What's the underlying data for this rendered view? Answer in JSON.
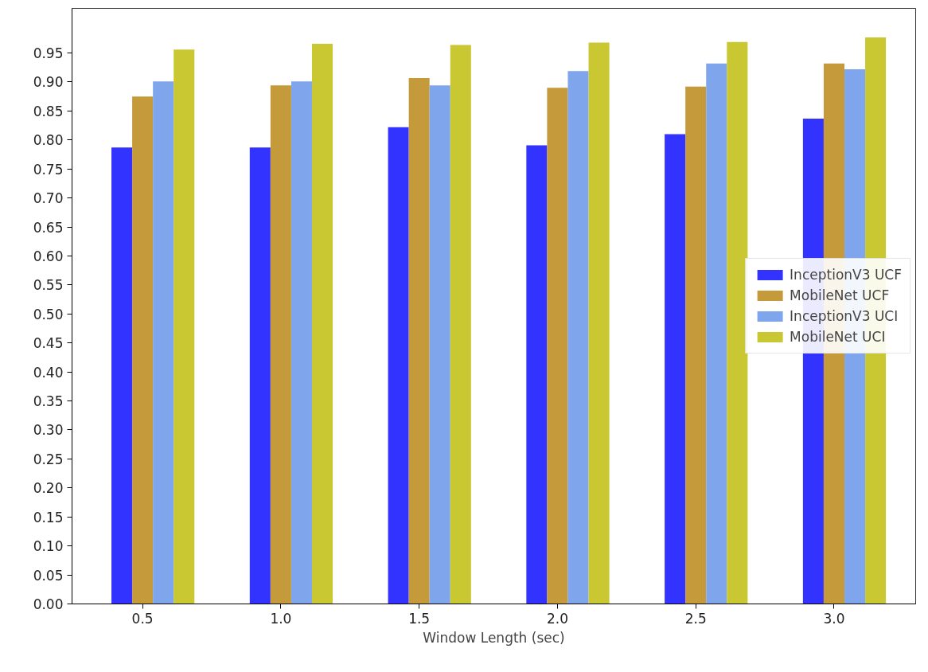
{
  "chart_data": {
    "type": "bar",
    "xlabel": "Window Length (sec)",
    "categories": [
      "0.5",
      "1.0",
      "1.5",
      "2.0",
      "2.5",
      "3.0"
    ],
    "series": [
      {
        "name": "InceptionV3 UCF",
        "color": "#3333ff",
        "values": [
          0.787,
          0.787,
          0.822,
          0.791,
          0.81,
          0.837
        ]
      },
      {
        "name": "MobileNet UCF",
        "color": "#c49a3a",
        "values": [
          0.875,
          0.894,
          0.907,
          0.89,
          0.892,
          0.932
        ]
      },
      {
        "name": "InceptionV3 UCI",
        "color": "#7fa6ec",
        "values": [
          0.901,
          0.901,
          0.894,
          0.919,
          0.932,
          0.922
        ]
      },
      {
        "name": "MobileNet UCI",
        "color": "#c9c832",
        "values": [
          0.956,
          0.966,
          0.964,
          0.968,
          0.969,
          0.977
        ]
      }
    ],
    "ylim": [
      0,
      1.027
    ],
    "yticks": [
      {
        "value": 0,
        "label": "0.00"
      },
      0.05,
      {
        "value": 0.1,
        "label": "0.10"
      },
      0.15,
      {
        "value": 0.2,
        "label": "0.20"
      },
      0.25,
      {
        "value": 0.3,
        "label": "0.30"
      },
      0.35,
      {
        "value": 0.4,
        "label": "0.40"
      },
      0.45,
      {
        "value": 0.5,
        "label": "0.50"
      },
      0.55,
      {
        "value": 0.6,
        "label": "0.60"
      },
      0.65,
      {
        "value": 0.7,
        "label": "0.70"
      },
      0.75,
      {
        "value": 0.8,
        "label": "0.80"
      },
      0.85,
      {
        "value": 0.9,
        "label": "0.90"
      },
      0.95
    ],
    "grid": false,
    "legend": "right"
  }
}
